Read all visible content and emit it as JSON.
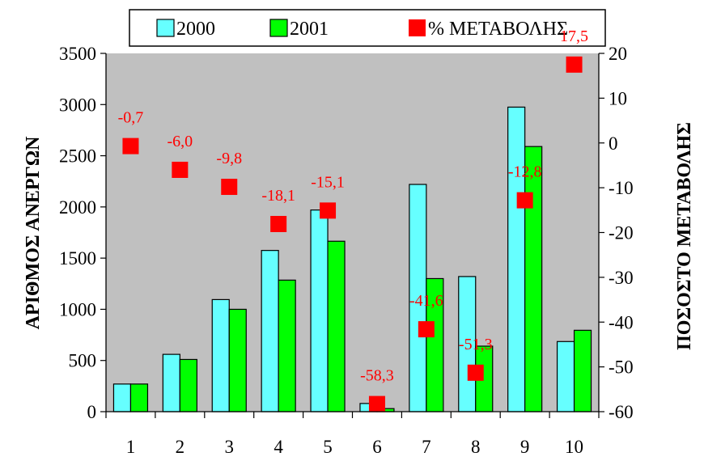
{
  "chart_data": {
    "type": "bar",
    "categories": [
      "1",
      "2",
      "3",
      "4",
      "5",
      "6",
      "7",
      "8",
      "9",
      "10"
    ],
    "series": [
      {
        "name": "2000",
        "axis": "left",
        "values": [
          270,
          560,
          1095,
          1575,
          1970,
          80,
          2220,
          1320,
          2975,
          685
        ],
        "color": "#66ffff"
      },
      {
        "name": "2001",
        "axis": "left",
        "values": [
          270,
          510,
          1000,
          1285,
          1665,
          30,
          1300,
          640,
          2590,
          795
        ],
        "color": "#00ff00"
      },
      {
        "name": "% ΜΕΤΑΒΟΛΗΣ",
        "axis": "right",
        "type": "scatter",
        "values": [
          -0.7,
          -6.0,
          -9.8,
          -18.1,
          -15.1,
          -58.3,
          -41.6,
          -51.3,
          -12.8,
          17.5
        ],
        "labels": [
          "-0,7",
          "-6,0",
          "-9,8",
          "-18,1",
          "-15,1",
          "-58,3",
          "-41,6",
          "-51,3",
          "-12,8",
          "17,5"
        ],
        "color": "#ff0000"
      }
    ],
    "ylabel": "ΑΡΙΘΜΟΣ ΑΝΕΡΓΩΝ",
    "y2label": "ΠΟΣΟΣΤΟ ΜΕΤΑΒΟΛΗΣ",
    "ylim": [
      0,
      3500
    ],
    "yticks": [
      "0",
      "500",
      "1000",
      "1500",
      "2000",
      "2500",
      "3000",
      "3500"
    ],
    "y2lim": [
      -60,
      20
    ],
    "y2ticks": [
      "-60",
      "-50",
      "-40",
      "-30",
      "-20",
      "-10",
      "0",
      "10",
      "20"
    ],
    "legend_position": "top",
    "plot_background": "#c0c0c0",
    "grid": false
  }
}
